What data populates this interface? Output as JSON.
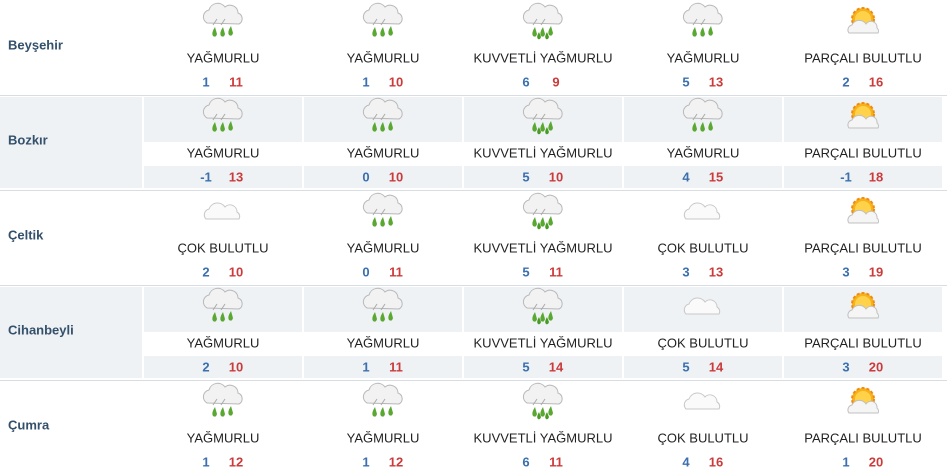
{
  "rows": [
    {
      "city": "Beyşehir",
      "days": [
        {
          "condition": "YAĞMURLU",
          "min": 1,
          "max": 11
        },
        {
          "condition": "YAĞMURLU",
          "min": 1,
          "max": 10
        },
        {
          "condition": "KUVVETLİ YAĞMURLU",
          "min": 6,
          "max": 9
        },
        {
          "condition": "YAĞMURLU",
          "min": 5,
          "max": 13
        },
        {
          "condition": "PARÇALI BULUTLU",
          "min": 2,
          "max": 16
        }
      ]
    },
    {
      "city": "Bozkır",
      "days": [
        {
          "condition": "YAĞMURLU",
          "min": -1,
          "max": 13
        },
        {
          "condition": "YAĞMURLU",
          "min": 0,
          "max": 10
        },
        {
          "condition": "KUVVETLİ YAĞMURLU",
          "min": 5,
          "max": 10
        },
        {
          "condition": "YAĞMURLU",
          "min": 4,
          "max": 15
        },
        {
          "condition": "PARÇALI BULUTLU",
          "min": -1,
          "max": 18
        }
      ]
    },
    {
      "city": "Çeltik",
      "days": [
        {
          "condition": "ÇOK BULUTLU",
          "min": 2,
          "max": 10
        },
        {
          "condition": "YAĞMURLU",
          "min": 0,
          "max": 11
        },
        {
          "condition": "KUVVETLİ YAĞMURLU",
          "min": 5,
          "max": 11
        },
        {
          "condition": "ÇOK BULUTLU",
          "min": 3,
          "max": 13
        },
        {
          "condition": "PARÇALI BULUTLU",
          "min": 3,
          "max": 19
        }
      ]
    },
    {
      "city": "Cihanbeyli",
      "days": [
        {
          "condition": "YAĞMURLU",
          "min": 2,
          "max": 10
        },
        {
          "condition": "YAĞMURLU",
          "min": 1,
          "max": 11
        },
        {
          "condition": "KUVVETLİ YAĞMURLU",
          "min": 5,
          "max": 14
        },
        {
          "condition": "ÇOK BULUTLU",
          "min": 5,
          "max": 14
        },
        {
          "condition": "PARÇALI BULUTLU",
          "min": 3,
          "max": 20
        }
      ]
    },
    {
      "city": "Çumra",
      "days": [
        {
          "condition": "YAĞMURLU",
          "min": 1,
          "max": 12
        },
        {
          "condition": "YAĞMURLU",
          "min": 1,
          "max": 12
        },
        {
          "condition": "KUVVETLİ YAĞMURLU",
          "min": 6,
          "max": 11
        },
        {
          "condition": "ÇOK BULUTLU",
          "min": 4,
          "max": 16
        },
        {
          "condition": "PARÇALI BULUTLU",
          "min": 1,
          "max": 20
        }
      ]
    }
  ]
}
